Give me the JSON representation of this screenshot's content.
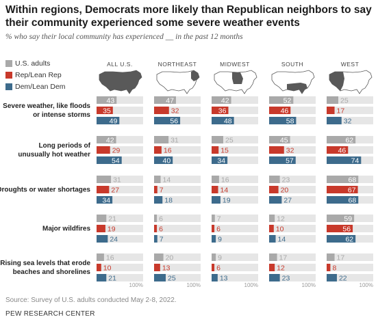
{
  "title": "Within regions, Democrats more likely than Republican neighbors to say their community experienced some severe weather events",
  "subtitle": "% who say their local community has experienced __ in the past 12 months",
  "source": "Source: Survey of U.S. adults conducted May 2-8, 2022.",
  "brand": "PEW RESEARCH CENTER",
  "colors": {
    "us": "#a9a9a9",
    "rep": "#c8392b",
    "dem": "#3d6b8c",
    "track": "#e6e6e6"
  },
  "chart_data": {
    "type": "bar",
    "orientation": "horizontal",
    "xlim": [
      0,
      100
    ],
    "axis_end_label": "100%",
    "series": [
      {
        "name": "U.S. adults",
        "key": "us"
      },
      {
        "name": "Rep/Lean Rep",
        "key": "rep"
      },
      {
        "name": "Dem/Lean Dem",
        "key": "dem"
      }
    ],
    "regions": [
      "ALL U.S.",
      "NORTHEAST",
      "MIDWEST",
      "SOUTH",
      "WEST"
    ],
    "categories": [
      {
        "label": [
          "Severe weather, like floods",
          "or intense storms"
        ],
        "values": {
          "us": [
            43,
            47,
            42,
            52,
            25
          ],
          "rep": [
            35,
            32,
            36,
            46,
            17
          ],
          "dem": [
            49,
            56,
            48,
            58,
            32
          ]
        }
      },
      {
        "label": [
          "Long periods of",
          "unusually hot weather"
        ],
        "values": {
          "us": [
            42,
            31,
            25,
            45,
            62
          ],
          "rep": [
            29,
            16,
            15,
            32,
            46
          ],
          "dem": [
            54,
            40,
            34,
            57,
            74
          ]
        }
      },
      {
        "label": [
          "Droughts or water shortages"
        ],
        "values": {
          "us": [
            31,
            14,
            16,
            23,
            68
          ],
          "rep": [
            27,
            7,
            14,
            20,
            67
          ],
          "dem": [
            34,
            18,
            19,
            27,
            68
          ]
        }
      },
      {
        "label": [
          "Major wildfires"
        ],
        "values": {
          "us": [
            21,
            6,
            7,
            12,
            59
          ],
          "rep": [
            19,
            6,
            6,
            10,
            56
          ],
          "dem": [
            24,
            7,
            9,
            14,
            62
          ]
        }
      },
      {
        "label": [
          "Rising sea levels that erode",
          "beaches and shorelines"
        ],
        "values": {
          "us": [
            16,
            20,
            9,
            17,
            17
          ],
          "rep": [
            10,
            13,
            6,
            12,
            8
          ],
          "dem": [
            21,
            25,
            13,
            23,
            22
          ]
        }
      }
    ]
  }
}
